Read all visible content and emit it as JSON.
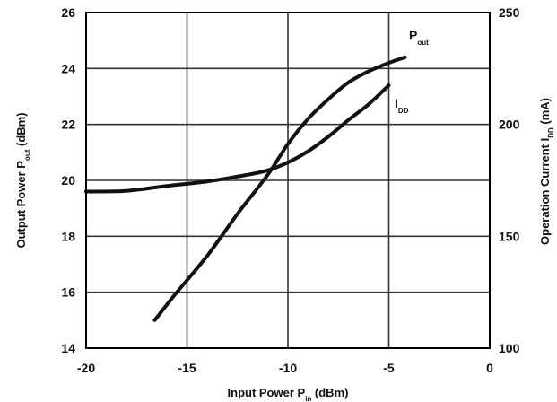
{
  "chart_data": {
    "type": "line",
    "xlabel": {
      "main": "Input Power P",
      "sub": "in",
      "unit": "(dBm)"
    },
    "ylabel_left": {
      "main": "Output Power P",
      "sub": "out",
      "unit": "(dBm)"
    },
    "ylabel_right": {
      "main": "Operation Current I",
      "sub": "DD",
      "unit": "(mA)"
    },
    "xlim": [
      -20,
      0
    ],
    "ylim_left": [
      14,
      26
    ],
    "ylim_right": [
      100,
      250
    ],
    "x_ticks": [
      -20,
      -15,
      -10,
      -5,
      0
    ],
    "x_tick_labels": [
      "-20",
      "-15",
      "-10",
      "-5",
      "0"
    ],
    "y_left_ticks": [
      14,
      16,
      18,
      20,
      22,
      24,
      26
    ],
    "y_left_tick_labels": [
      "14",
      "16",
      "18",
      "20",
      "22",
      "24",
      "26"
    ],
    "y_right_ticks": [
      100,
      150,
      200,
      250
    ],
    "y_right_tick_labels": [
      "100",
      "150",
      "200",
      "250"
    ],
    "grid": true,
    "series": [
      {
        "name": "P",
        "name_sub": "out",
        "axis": "left",
        "x": [
          -16.6,
          -15.5,
          -14,
          -12.5,
          -11,
          -10,
          -9,
          -8,
          -7,
          -6,
          -5,
          -4.2
        ],
        "y": [
          15.0,
          16.0,
          17.3,
          18.8,
          20.2,
          21.3,
          22.2,
          22.9,
          23.5,
          23.9,
          24.2,
          24.4
        ]
      },
      {
        "name": "I",
        "name_sub": "DD",
        "axis": "right",
        "x": [
          -20,
          -18,
          -16,
          -14,
          -12,
          -11,
          -10,
          -9,
          -8,
          -7,
          -6,
          -5
        ],
        "y": [
          170.0,
          170.3,
          172.5,
          174.5,
          177.5,
          179.5,
          183.0,
          188.0,
          194.5,
          202.0,
          209.0,
          217.5
        ]
      }
    ]
  }
}
